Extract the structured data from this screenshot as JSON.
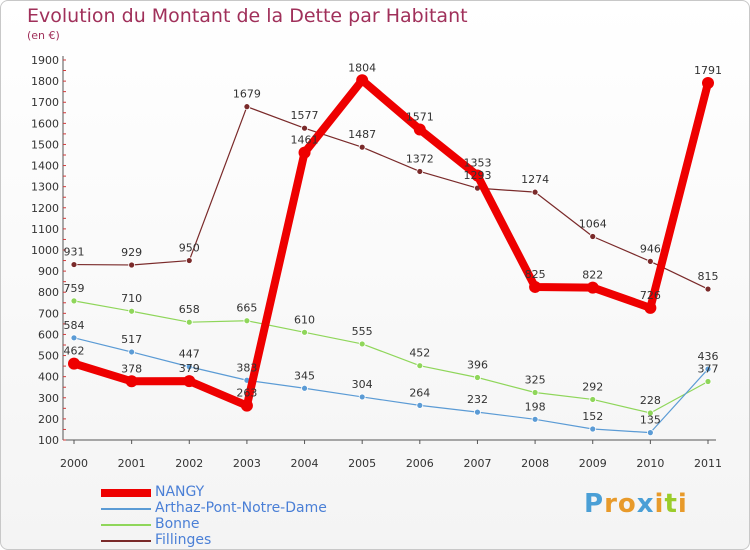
{
  "title": "Evolution du Montant de la Dette par Habitant",
  "unit": "(en €)",
  "logo": {
    "text": "Proxiti",
    "colors": [
      "#4a9fd6",
      "#e89a2a",
      "#e89a2a",
      "#4a9fd6",
      "#e89a2a",
      "#9acc2a",
      "#e89a2a"
    ]
  },
  "chart_data": {
    "type": "line",
    "title": "Evolution du Montant de la Dette par Habitant",
    "ylabel": "(en €)",
    "x": [
      "2000",
      "2001",
      "2002",
      "2003",
      "2004",
      "2005",
      "2006",
      "2007",
      "2008",
      "2009",
      "2010",
      "2011"
    ],
    "ylim": [
      100,
      1900
    ],
    "yticks": [
      100,
      200,
      300,
      400,
      500,
      600,
      700,
      800,
      900,
      1000,
      1100,
      1200,
      1300,
      1400,
      1500,
      1600,
      1700,
      1800,
      1900
    ],
    "grid": false,
    "legend_position": "bottom-left",
    "series": [
      {
        "name": "Fillinges",
        "color": "#7a2a2a",
        "values": [
          931,
          929,
          950,
          1679,
          1577,
          1487,
          1372,
          1293,
          1274,
          1064,
          946,
          815
        ]
      },
      {
        "name": "Bonne",
        "color": "#8fd65a",
        "values": [
          759,
          710,
          658,
          665,
          610,
          555,
          452,
          396,
          325,
          292,
          228,
          377
        ]
      },
      {
        "name": "Arthaz-Pont-Notre-Dame",
        "color": "#5b9bd5",
        "values": [
          584,
          517,
          447,
          383,
          345,
          304,
          264,
          232,
          198,
          152,
          135,
          436
        ]
      },
      {
        "name": "NANGY",
        "color": "#ee0000",
        "values": [
          462,
          378,
          379,
          263,
          1461,
          1804,
          1571,
          1353,
          825,
          822,
          726,
          1791
        ]
      }
    ],
    "labels": [
      {
        "series": "Fillinges",
        "text": [
          "931",
          "929",
          "950",
          "1679",
          "1577",
          "1487",
          "1372",
          "1293",
          "1274",
          "1064",
          "946",
          "815"
        ]
      },
      {
        "series": "Bonne",
        "text": [
          "759",
          "710",
          "658",
          "665",
          "610",
          "555",
          "452",
          "396",
          "325",
          "292",
          "228",
          "377"
        ]
      },
      {
        "series": "Arthaz-Pont-Notre-Dame",
        "text": [
          "584",
          "517",
          "447",
          "383",
          "345",
          "304",
          "264",
          "232",
          "198",
          "152",
          "135",
          "436"
        ]
      },
      {
        "series": "NANGY",
        "text": [
          "462",
          "378",
          "379",
          "263",
          "1461",
          "1804",
          "1571",
          "1353",
          "825",
          "822",
          "726",
          "1791"
        ]
      }
    ]
  },
  "legend": [
    {
      "name": "NANGY",
      "color": "#ee0000"
    },
    {
      "name": "Arthaz-Pont-Notre-Dame",
      "color": "#5b9bd5"
    },
    {
      "name": "Bonne",
      "color": "#8fd65a"
    },
    {
      "name": "Fillinges",
      "color": "#7a2a2a"
    }
  ]
}
